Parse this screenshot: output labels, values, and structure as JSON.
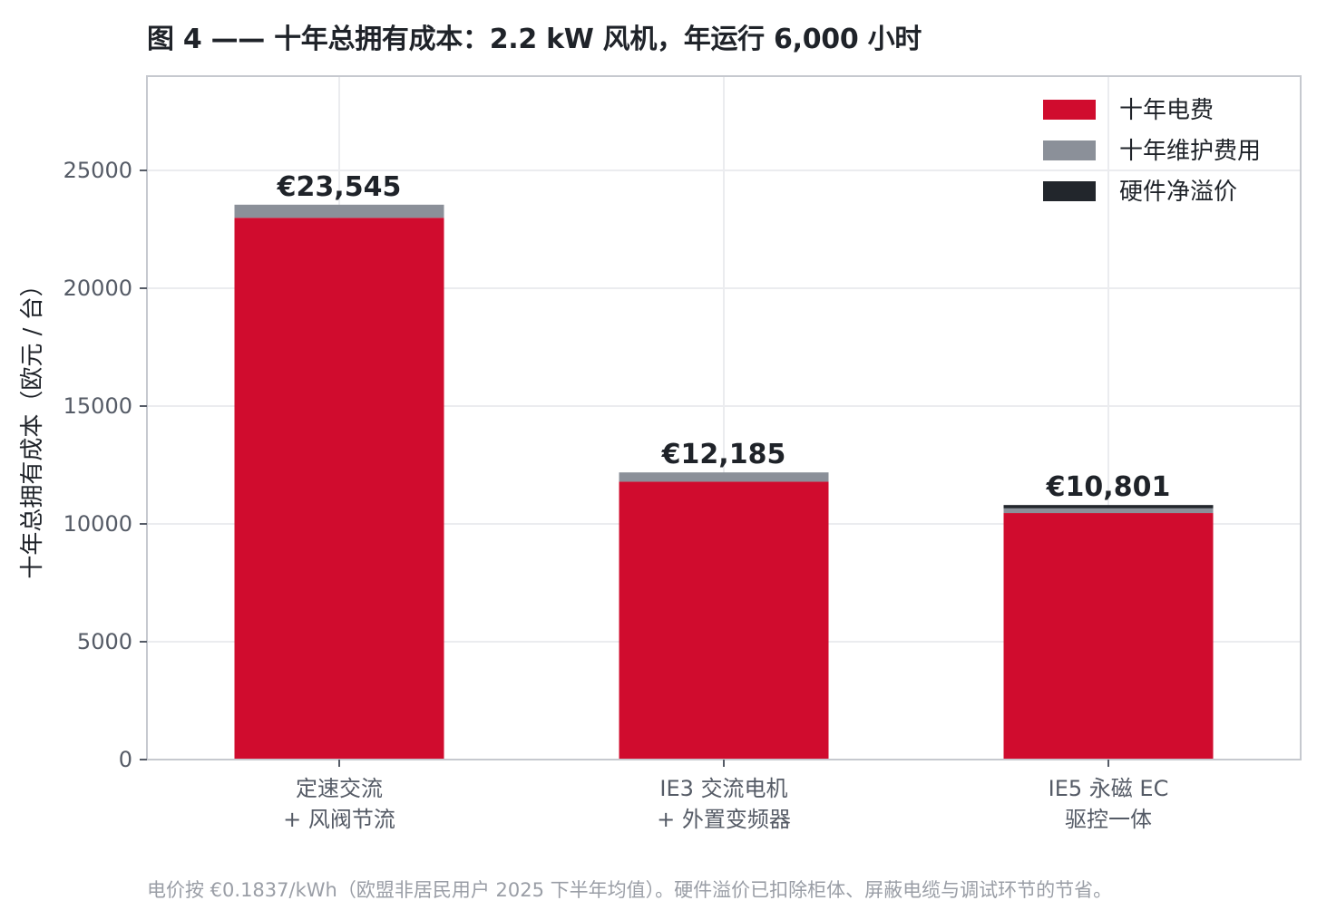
{
  "chart_data": {
    "type": "bar",
    "stacked": true,
    "title": "图 4 —— 十年总拥有成本：2.2 kW 风机，年运行 6,000 小时",
    "ylabel": "十年总拥有成本（欧元 / 台）",
    "xlabel": "",
    "ylim": [
      0,
      29000
    ],
    "yticks": [
      0,
      5000,
      10000,
      15000,
      20000,
      25000
    ],
    "grid": true,
    "legend_position": "top-right",
    "categories": [
      [
        "定速交流",
        "+ 风阀节流"
      ],
      [
        "IE3 交流电机",
        "+ 外置变频器"
      ],
      [
        "IE5 永磁 EC",
        "驱控一体"
      ]
    ],
    "series": [
      {
        "name": "十年电费",
        "color": "#d00c2e",
        "values": [
          22990,
          11790,
          10460
        ]
      },
      {
        "name": "十年维护费用",
        "color": "#8b9099",
        "values": [
          555,
          395,
          201
        ]
      },
      {
        "name": "硬件净溢价",
        "color": "#22262c",
        "values": [
          0,
          0,
          140
        ]
      }
    ],
    "totals": [
      "€23,545",
      "€12,185",
      "€10,801"
    ],
    "totals_values": [
      23545,
      12185,
      10801
    ]
  },
  "footnote": "电价按 €0.1837/kWh（欧盟非居民用户 2025 下半年均值）。硬件溢价已扣除柜体、屏蔽电缆与调试环节的节省。"
}
